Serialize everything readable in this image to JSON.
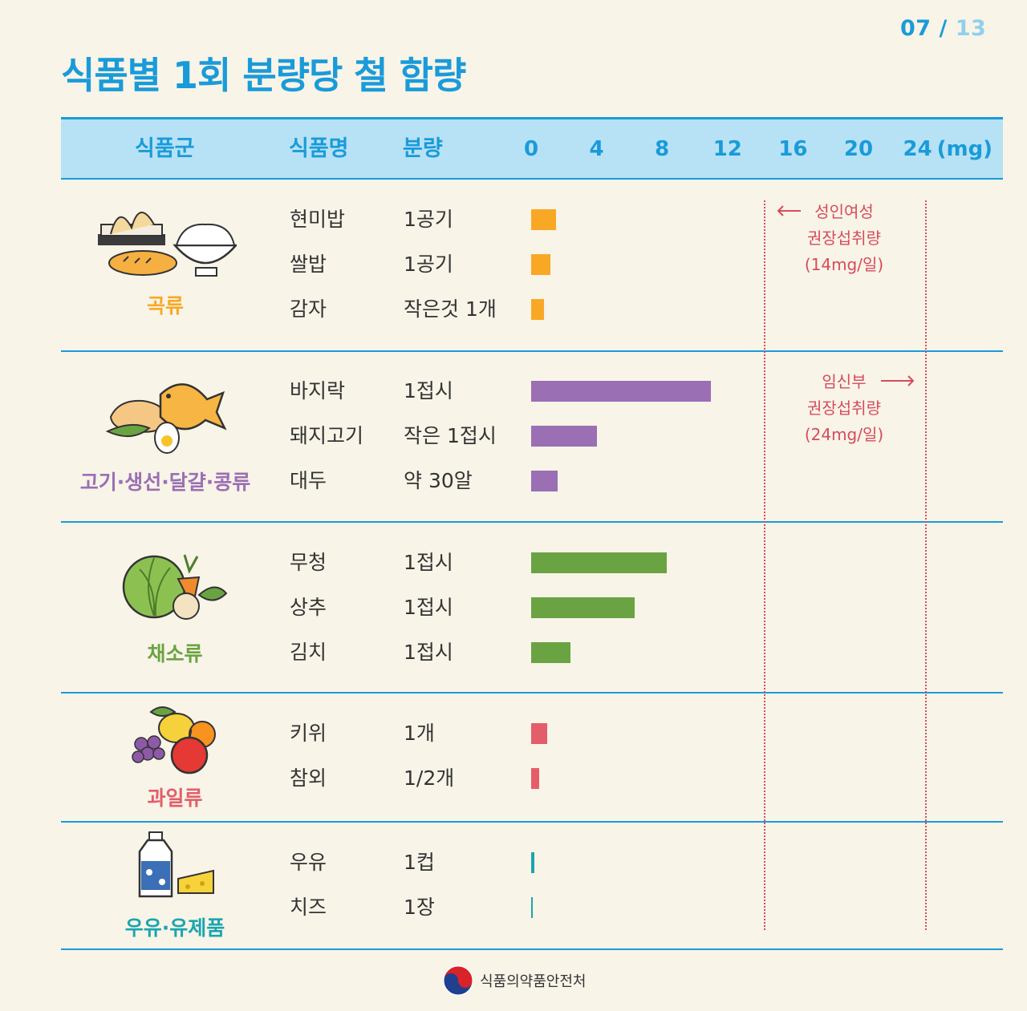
{
  "page": {
    "current": "07",
    "separator": "/",
    "total": "13"
  },
  "title": "식품별 1회 분량당 철 함량",
  "header": {
    "group": "식품군",
    "name": "식품명",
    "serving": "분량"
  },
  "chart_data": {
    "type": "bar",
    "orientation": "horizontal",
    "x_ticks": [
      "0",
      "4",
      "8",
      "12",
      "16",
      "20",
      "24"
    ],
    "x_unit": "(mg)",
    "xlim": [
      0,
      24
    ],
    "groups": [
      {
        "name": "곡류",
        "color": "#f9a825",
        "icon": "grain-icon",
        "items": [
          {
            "name": "현미밥",
            "serving": "1공기",
            "value": 1.5
          },
          {
            "name": "쌀밥",
            "serving": "1공기",
            "value": 1.2
          },
          {
            "name": "감자",
            "serving": "작은것 1개",
            "value": 0.8
          }
        ]
      },
      {
        "name": "고기·생선·달걀·콩류",
        "color": "#9a6fb4",
        "icon": "meat-fish-egg-bean-icon",
        "items": [
          {
            "name": "바지락",
            "serving": "1접시",
            "value": 11
          },
          {
            "name": "돼지고기",
            "serving": "작은 1접시",
            "value": 4
          },
          {
            "name": "대두",
            "serving": "약 30알",
            "value": 1.6
          }
        ]
      },
      {
        "name": "채소류",
        "color": "#6aa342",
        "icon": "vegetables-icon",
        "items": [
          {
            "name": "무청",
            "serving": "1접시",
            "value": 8.3
          },
          {
            "name": "상추",
            "serving": "1접시",
            "value": 6.3
          },
          {
            "name": "김치",
            "serving": "1접시",
            "value": 2.4
          }
        ]
      },
      {
        "name": "과일류",
        "color": "#e35d6a",
        "icon": "fruits-icon",
        "items": [
          {
            "name": "키위",
            "serving": "1개",
            "value": 1.0
          },
          {
            "name": "참외",
            "serving": "1/2개",
            "value": 0.5
          }
        ]
      },
      {
        "name": "우유·유제품",
        "color": "#1aa5b0",
        "icon": "milk-cheese-icon",
        "items": [
          {
            "name": "우유",
            "serving": "1컵",
            "value": 0.2
          },
          {
            "name": "치즈",
            "serving": "1장",
            "value": 0.1
          }
        ]
      }
    ],
    "reference_lines": [
      {
        "value": 14,
        "lines": [
          "성인여성",
          "권장섭취량",
          "(14mg/일)"
        ]
      },
      {
        "value": 24,
        "lines": [
          "임신부",
          "권장섭취량",
          "(24mg/일)"
        ]
      }
    ]
  },
  "footer": {
    "agency": "식품의약품안전처"
  }
}
